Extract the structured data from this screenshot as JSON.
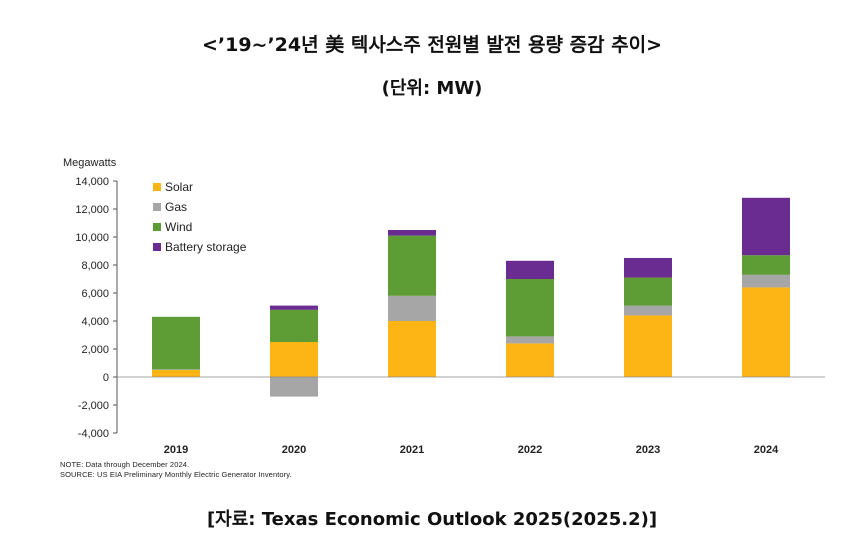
{
  "header": {
    "title": "<’19~’24년 美 텍사스주 전원별 발전 용량 증감 추이>",
    "unit": "(단위: MW)"
  },
  "footer": {
    "note": "NOTE: Data through December 2024.",
    "source": "SOURCE: US EIA Preliminary Monthly Electric Generator Inventory.",
    "citation": "[자료: Texas Economic Outlook 2025(2025.2)]"
  },
  "colors": {
    "Solar": "#FDB515",
    "Gas": "#A6A6A6",
    "Wind": "#5E9C36",
    "Battery storage": "#6A2C91"
  },
  "chart_data": {
    "type": "bar",
    "stacked": true,
    "title": "",
    "ylabel": "Megawatts",
    "xlabel": "",
    "ylim": [
      -4000,
      14000
    ],
    "yticks": [
      -4000,
      -2000,
      0,
      2000,
      4000,
      6000,
      8000,
      10000,
      12000,
      14000
    ],
    "ytick_labels": [
      "-4,000",
      "-2,000",
      "0",
      "2,000",
      "4,000",
      "6,000",
      "8,000",
      "10,000",
      "12,000",
      "14,000"
    ],
    "legend_position": "top-left",
    "categories": [
      "2019",
      "2020",
      "2021",
      "2022",
      "2023",
      "2024"
    ],
    "series": [
      {
        "name": "Solar",
        "values": [
          500,
          2500,
          4000,
          2400,
          4400,
          6400
        ]
      },
      {
        "name": "Gas",
        "values": [
          50,
          -1400,
          1800,
          500,
          700,
          900
        ]
      },
      {
        "name": "Wind",
        "values": [
          3750,
          2300,
          4300,
          4100,
          2000,
          1400
        ]
      },
      {
        "name": "Battery storage",
        "values": [
          0,
          300,
          400,
          1300,
          1400,
          4100
        ]
      }
    ]
  }
}
